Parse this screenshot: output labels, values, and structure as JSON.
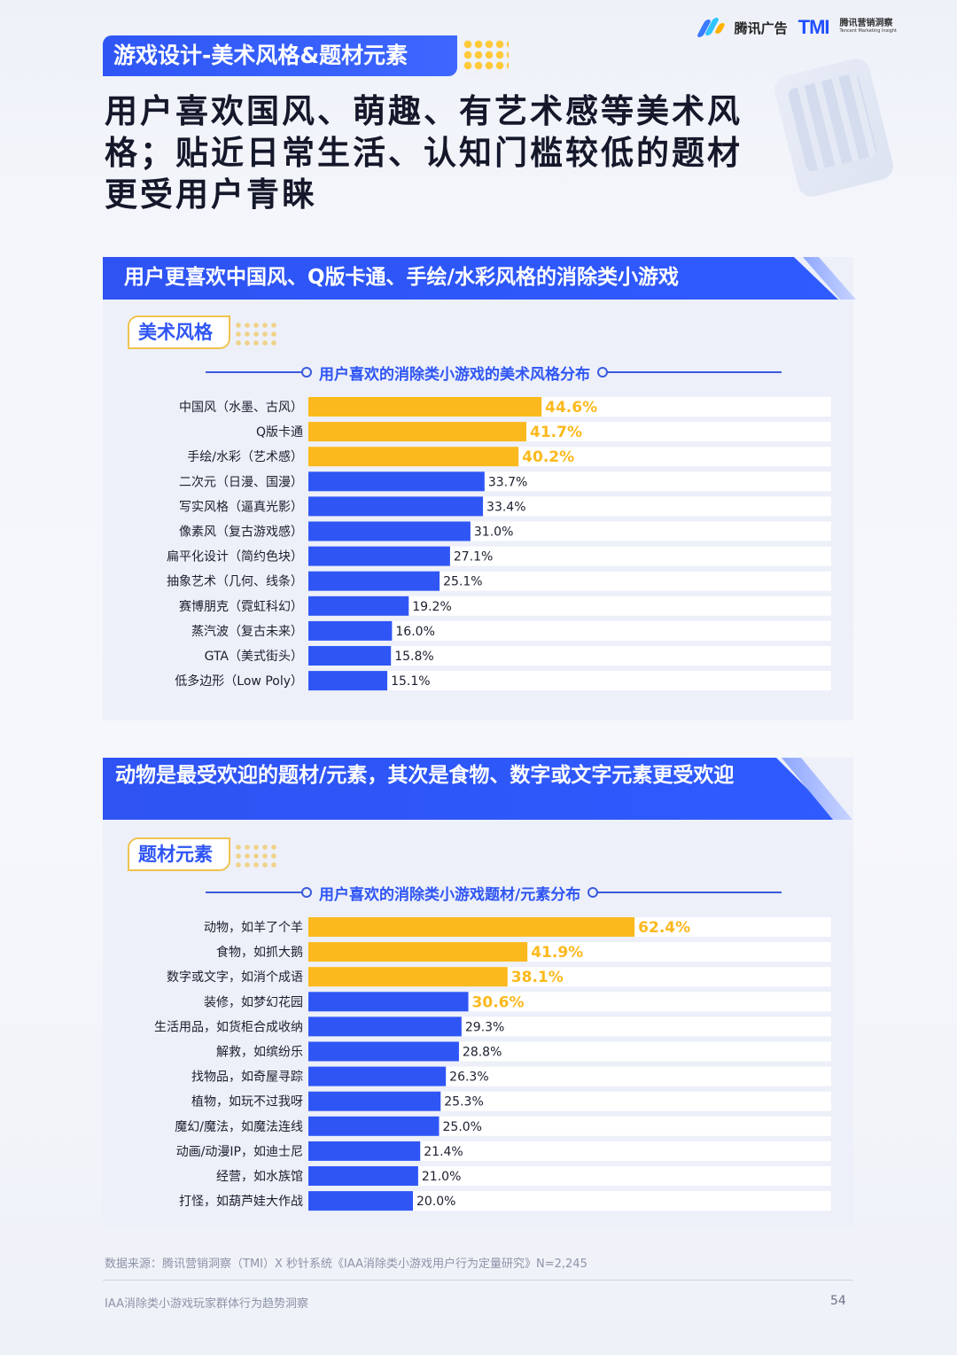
{
  "branding": {
    "tencent_ads": "腾讯广告",
    "tmi_mark": "TMI",
    "tmi_name": "腾讯营销洞察",
    "tmi_sub": "Tencent Marketing Insight"
  },
  "section_tag": "游戏设计-美术风格&题材元素",
  "headline": "用户喜欢国风、萌趣、有艺术感等美术风格；贴近日常生活、认知门槛较低的题材更受用户青睐",
  "colors": {
    "primary_blue": "#2f56f5",
    "highlight_gold": "#fbb91d",
    "bar_bg": "#ffffff"
  },
  "panels": [
    {
      "banner": "用户更喜欢中国风、Q版卡通、手绘/水彩风格的消除类小游戏",
      "tag": "美术风格"
    },
    {
      "banner": "动物是最受欢迎的题材/元素，其次是食物、数字或文字元素更受欢迎",
      "tag": "题材元素"
    }
  ],
  "chart_data": [
    {
      "type": "bar",
      "orientation": "horizontal",
      "title": "用户喜欢的消除类小游戏的美术风格分布",
      "unit": "%",
      "categories": [
        "中国风（水墨、古风）",
        "Q版卡通",
        "手绘/水彩（艺术感）",
        "二次元（日漫、国漫）",
        "写实风格（逼真光影）",
        "像素风（复古游戏感）",
        "扁平化设计（简约色块）",
        "抽象艺术（几何、线条）",
        "赛博朋克（霓虹科幻）",
        "蒸汽波（复古未来）",
        "GTA（美式街头）",
        "低多边形（Low Poly）"
      ],
      "values": [
        44.6,
        41.7,
        40.2,
        33.7,
        33.4,
        31.0,
        27.1,
        25.1,
        19.2,
        16.0,
        15.8,
        15.1
      ],
      "labels": [
        "44.6%",
        "41.7%",
        "40.2%",
        "33.7%",
        "33.4%",
        "31.0%",
        "27.1%",
        "25.1%",
        "19.2%",
        "16.0%",
        "15.8%",
        "15.1%"
      ],
      "highlight_top": 3,
      "xlim": [
        0,
        100
      ]
    },
    {
      "type": "bar",
      "orientation": "horizontal",
      "title": "用户喜欢的消除类小游戏题材/元素分布",
      "unit": "%",
      "categories": [
        "动物，如羊了个羊",
        "食物，如抓大鹅",
        "数字或文字，如消个成语",
        "装修，如梦幻花园",
        "生活用品，如货柜合成收纳",
        "解救，如缤纷乐",
        "找物品，如奇屋寻踪",
        "植物，如玩不过我呀",
        "魔幻/魔法，如魔法连线",
        "动画/动漫IP，如迪士尼",
        "经营，如水族馆",
        "打怪，如葫芦娃大作战"
      ],
      "values": [
        62.4,
        41.9,
        38.1,
        30.6,
        29.3,
        28.8,
        26.3,
        25.3,
        25.0,
        21.4,
        21.0,
        20.0
      ],
      "labels": [
        "62.4%",
        "41.9%",
        "38.1%",
        "30.6%",
        "29.3%",
        "28.8%",
        "26.3%",
        "25.3%",
        "25.0%",
        "21.4%",
        "21.0%",
        "20.0%"
      ],
      "highlight_top": 3,
      "highlight_labels_top": 4,
      "xlim": [
        0,
        100
      ]
    }
  ],
  "source": "数据来源：腾讯营销洞察（TMI）X 秒针系统《IAA消除类小游戏用户行为定量研究》N=2,245",
  "footer": {
    "report_title": "IAA消除类小游戏玩家群体行为趋势洞察",
    "page_number": "54"
  }
}
